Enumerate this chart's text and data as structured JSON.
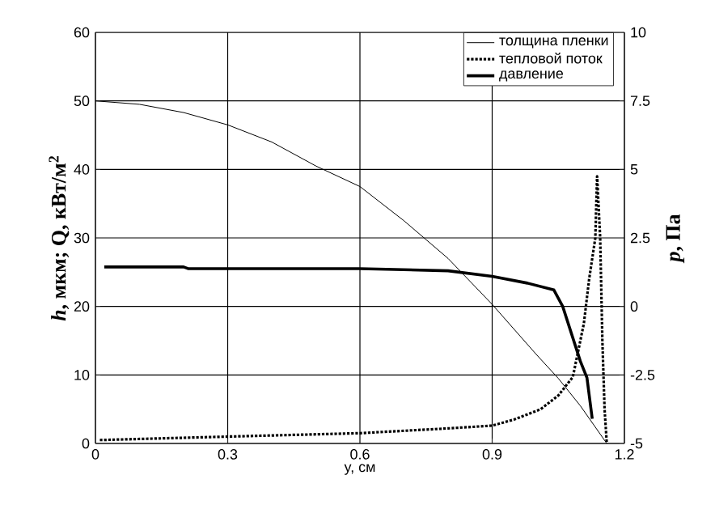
{
  "chart_data": {
    "type": "line",
    "xlabel": "y, см",
    "ylabel": "*h*, мкм;   Q, кВт/м$^{2}$",
    "y2label": "*p*, Па",
    "xlim": [
      0,
      1.2
    ],
    "xticks": [
      0,
      0.3,
      0.6,
      0.9,
      1.2
    ],
    "ylim": [
      0,
      60
    ],
    "yticks": [
      0,
      10,
      20,
      30,
      40,
      50,
      60
    ],
    "y2lim": [
      -5,
      10
    ],
    "y2ticks": [
      -5,
      -2.5,
      0,
      2.5,
      5,
      7.5,
      10
    ],
    "grid": true,
    "legend": "top right",
    "series": [
      {
        "name": "толщина пленки",
        "color": "#000000",
        "line_style": "solid",
        "x": [
          0,
          0.1,
          0.2,
          0.3,
          0.4,
          0.5,
          0.6,
          0.7,
          0.8,
          0.9,
          1.0,
          1.05,
          1.1,
          1.16
        ],
        "values": [
          50,
          49.5,
          48.3,
          46.5,
          44,
          40.5,
          37.5,
          32.5,
          27,
          20.3,
          13,
          9.5,
          5.5,
          0
        ]
      },
      {
        "name": "тепловой поток",
        "color": "#000000",
        "line_style": "dotted",
        "x": [
          0.01,
          0.3,
          0.6,
          0.8,
          0.9,
          0.95,
          1.01,
          1.05,
          1.083,
          1.108,
          1.12,
          1.134,
          1.138,
          1.145,
          1.15,
          1.155,
          1.16
        ],
        "values": [
          0.5,
          1,
          1.5,
          2.2,
          2.6,
          3.5,
          5,
          7,
          9.7,
          17.5,
          24,
          30,
          39,
          30,
          15,
          5,
          0
        ]
      },
      {
        "name": "давление",
        "color": "#000000",
        "line_style": "solid",
        "axis": "y2",
        "x": [
          0.02,
          0.2,
          0.21,
          0.6,
          0.8,
          0.9,
          0.98,
          1.04,
          1.06,
          1.08,
          1.1,
          1.115,
          1.127
        ],
        "values": [
          1.44,
          1.44,
          1.38,
          1.38,
          1.3,
          1.1,
          0.85,
          0.6,
          0,
          -1,
          -2,
          -2.6,
          -4.1
        ]
      }
    ]
  }
}
